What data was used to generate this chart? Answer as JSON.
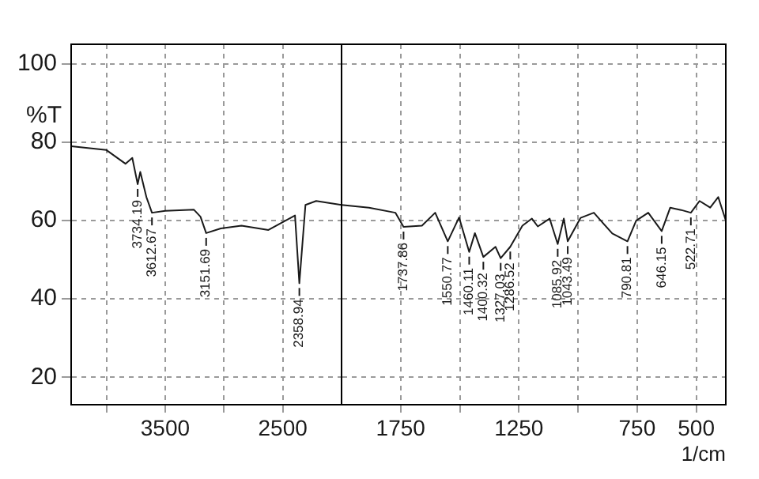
{
  "chart_data": [
    {
      "type": "line",
      "ylabel": "%T",
      "color": "#1a1a1a",
      "x": [
        4300,
        4000,
        3838,
        3780,
        3734.19,
        3712,
        3660,
        3612.67,
        3500,
        3257,
        3200,
        3151.69,
        3027,
        2851,
        2622,
        2396,
        2358.94,
        2307,
        2216,
        2000
      ],
      "values": [
        79,
        78,
        74.5,
        76,
        69.3,
        72.4,
        66,
        62,
        62.5,
        62.8,
        61,
        56.8,
        58,
        58.7,
        57.6,
        61.3,
        44,
        64,
        65,
        64
      ],
      "xlim": [
        4300,
        2000
      ],
      "xticks": [
        {
          "value": 4000,
          "label": null
        },
        3500,
        {
          "value": 3000,
          "label": null
        },
        2500
      ],
      "ylim": [
        13,
        105
      ],
      "yticks": [
        20,
        40,
        60,
        80,
        100
      ],
      "grid": true,
      "annotations": [
        {
          "text": "3734.19",
          "x": 3734.19,
          "y": 69.3
        },
        {
          "text": "3612.67",
          "x": 3612.67,
          "y": 62
        },
        {
          "text": "3151.69",
          "x": 3151.69,
          "y": 56.8
        },
        {
          "text": "2358.94",
          "x": 2358.94,
          "y": 44
        }
      ]
    },
    {
      "type": "line",
      "xlabel": "1/cm",
      "color": "#1a1a1a",
      "tick_labels": "x",
      "x": [
        2000,
        1884,
        1772,
        1737.86,
        1660,
        1604,
        1550.77,
        1503,
        1460.11,
        1436,
        1400.32,
        1349,
        1327.03,
        1286.52,
        1235,
        1195,
        1170,
        1120,
        1085.92,
        1060,
        1043.49,
        989,
        933,
        855,
        790.81,
        754,
        703,
        646.15,
        610,
        564,
        522.71,
        486,
        441,
        407,
        375
      ],
      "values": [
        64,
        63.3,
        62,
        58.4,
        58.7,
        62,
        54.7,
        60.8,
        52,
        56.8,
        50.7,
        53.3,
        50.4,
        53.3,
        58.7,
        60.5,
        58.5,
        60.5,
        54,
        60.5,
        54.7,
        60.7,
        62,
        56.7,
        54.7,
        60,
        62,
        57.3,
        63.3,
        62.7,
        62,
        65,
        63.3,
        66,
        60
      ],
      "xlim": [
        2000,
        375
      ],
      "xticks": [
        1750,
        {
          "value": 1500,
          "label": null
        },
        1250,
        {
          "value": 1000,
          "label": null
        },
        750,
        500
      ],
      "ylim": [
        13,
        105
      ],
      "yticks": [
        20,
        40,
        60,
        80,
        100
      ],
      "grid": true,
      "annotations": [
        {
          "text": "1737.86",
          "x": 1737.86,
          "y": 58.4
        },
        {
          "text": "1550.77",
          "x": 1550.77,
          "y": 54.7
        },
        {
          "text": "1460.11",
          "x": 1460.11,
          "y": 52
        },
        {
          "text": "1400.32",
          "x": 1400.32,
          "y": 50.7
        },
        {
          "text": "1327.03",
          "x": 1327.03,
          "y": 50.4
        },
        {
          "text": "1286.52",
          "x": 1286.52,
          "y": 53.3
        },
        {
          "text": "1085.92",
          "x": 1085.92,
          "y": 54
        },
        {
          "text": "1043.49",
          "x": 1043.49,
          "y": 54.7
        },
        {
          "text": "790.81",
          "x": 790.81,
          "y": 54.7
        },
        {
          "text": "646.15",
          "x": 646.15,
          "y": 57.3
        },
        {
          "text": "522.71",
          "x": 522.71,
          "y": 62
        }
      ]
    }
  ]
}
